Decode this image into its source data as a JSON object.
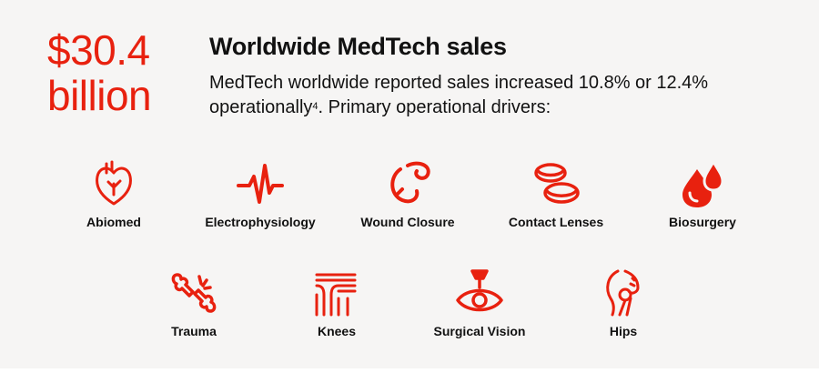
{
  "headline": {
    "amount_line1": "$30.4",
    "amount_line2": "billion",
    "title": "Worldwide MedTech sales",
    "desc_main": "MedTech worldwide reported sales increased 10.8% or 12.4% operationally",
    "footnote": "4",
    "desc_tail": ". Primary operational drivers:"
  },
  "colors": {
    "accent": "#e8210f",
    "text": "#111111",
    "panel": "#f6f5f4"
  },
  "drivers": [
    {
      "label": "Abiomed",
      "icon": "heart-icon"
    },
    {
      "label": "Electrophysiology",
      "icon": "heartbeat-pulse-icon"
    },
    {
      "label": "Wound Closure",
      "icon": "suture-needle-icon"
    },
    {
      "label": "Contact Lenses",
      "icon": "contact-lenses-icon"
    },
    {
      "label": "Biosurgery",
      "icon": "blood-drops-icon"
    },
    {
      "label": "Trauma",
      "icon": "broken-bone-icon"
    },
    {
      "label": "Knees",
      "icon": "knee-joint-icon"
    },
    {
      "label": "Surgical Vision",
      "icon": "eye-laser-icon"
    },
    {
      "label": "Hips",
      "icon": "hip-joint-icon"
    }
  ]
}
